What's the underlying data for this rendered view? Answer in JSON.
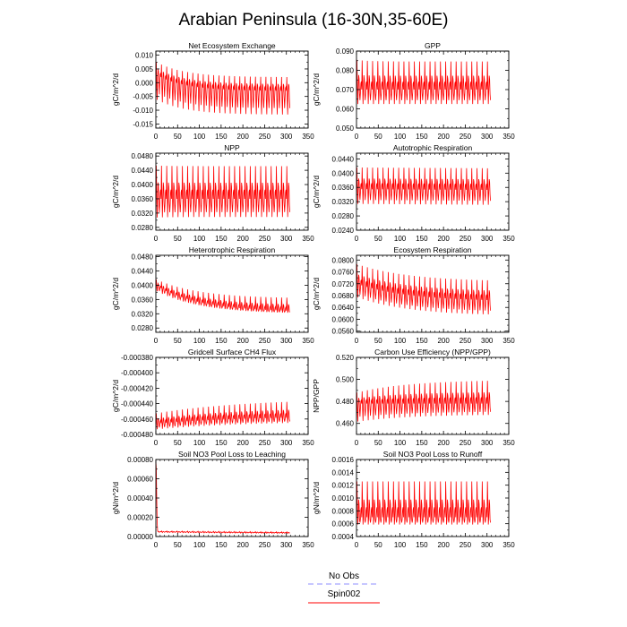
{
  "title": "Arabian Peninsula (16-30N,35-60E)",
  "colors": {
    "series": "#ff0000",
    "obs": "#8c8cff",
    "axis": "#000000"
  },
  "legend": {
    "placement": "bottom-center",
    "obs_label": "No Obs",
    "series_label": "Spin002"
  },
  "chart_data": [
    {
      "type": "line",
      "title": "Net Ecosystem Exchange",
      "ylabel": "gC/m^2/d",
      "xlim": [
        0,
        350
      ],
      "xticks": [
        "0",
        "50",
        "100",
        "150",
        "200",
        "250",
        "300",
        "350"
      ],
      "ylim": [
        -0.0165,
        0.0115
      ],
      "yticks": [
        {
          "v": -0.015,
          "t": "-0.015"
        },
        {
          "v": -0.01,
          "t": "-0.010"
        },
        {
          "v": -0.005,
          "t": "-0.005"
        },
        {
          "v": 0.0,
          "t": "0.000"
        },
        {
          "v": 0.005,
          "t": "0.005"
        },
        {
          "v": 0.01,
          "t": "0.010"
        }
      ],
      "series": [
        {
          "n": 308,
          "period": 12,
          "start_hi": 0.0085,
          "hi": 0.003,
          "start_lo": -0.009,
          "lo": -0.0145,
          "settle": 0.18,
          "mid_start": 0.003,
          "mid": -0.003
        }
      ]
    },
    {
      "type": "line",
      "title": "GPP",
      "ylabel": "gC/m^2/d",
      "xlim": [
        0,
        350
      ],
      "xticks": [
        "0",
        "50",
        "100",
        "150",
        "200",
        "250",
        "300",
        "350"
      ],
      "ylim": [
        0.05,
        0.09
      ],
      "yticks": [
        {
          "v": 0.05,
          "t": "0.050"
        },
        {
          "v": 0.06,
          "t": "0.060"
        },
        {
          "v": 0.07,
          "t": "0.070"
        },
        {
          "v": 0.08,
          "t": "0.080"
        },
        {
          "v": 0.09,
          "t": "0.090"
        }
      ],
      "series": [
        {
          "n": 308,
          "period": 12,
          "start_hi": 0.0885,
          "hi": 0.0875,
          "start_lo": 0.06,
          "lo": 0.06,
          "settle": 0.4,
          "mid_start": 0.07,
          "mid": 0.07
        }
      ]
    },
    {
      "type": "line",
      "title": "NPP",
      "ylabel": "gC/m^2/d",
      "xlim": [
        0,
        350
      ],
      "xticks": [
        "0",
        "50",
        "100",
        "150",
        "200",
        "250",
        "300",
        "350"
      ],
      "ylim": [
        0.0272,
        0.0488
      ],
      "yticks": [
        {
          "v": 0.028,
          "t": "0.0280"
        },
        {
          "v": 0.032,
          "t": "0.0320"
        },
        {
          "v": 0.036,
          "t": "0.0360"
        },
        {
          "v": 0.04,
          "t": "0.0400"
        },
        {
          "v": 0.044,
          "t": "0.0440"
        },
        {
          "v": 0.048,
          "t": "0.0480"
        }
      ],
      "series": [
        {
          "n": 308,
          "period": 12,
          "start_hi": 0.0472,
          "hi": 0.047,
          "start_lo": 0.029,
          "lo": 0.0292,
          "settle": 0.4,
          "mid_start": 0.036,
          "mid": 0.036
        }
      ]
    },
    {
      "type": "line",
      "title": "Autotrophic Respiration",
      "ylabel": "gC/m^2/d",
      "xlim": [
        0,
        350
      ],
      "xticks": [
        "0",
        "50",
        "100",
        "150",
        "200",
        "250",
        "300",
        "350"
      ],
      "ylim": [
        0.024,
        0.0456
      ],
      "yticks": [
        {
          "v": 0.024,
          "t": "0.0240"
        },
        {
          "v": 0.028,
          "t": "0.0280"
        },
        {
          "v": 0.032,
          "t": "0.0320"
        },
        {
          "v": 0.036,
          "t": "0.0360"
        },
        {
          "v": 0.04,
          "t": "0.0400"
        },
        {
          "v": 0.044,
          "t": "0.0440"
        }
      ],
      "series": [
        {
          "n": 308,
          "period": 12,
          "start_hi": 0.0428,
          "hi": 0.0405,
          "start_lo": 0.03,
          "lo": 0.0272,
          "settle": 0.004,
          "mid_start": 0.0355,
          "mid": 0.0335
        }
      ]
    },
    {
      "type": "line",
      "title": "Heterotrophic Respiration",
      "ylabel": "gC/m^2/d",
      "xlim": [
        0,
        350
      ],
      "xticks": [
        "0",
        "50",
        "100",
        "150",
        "200",
        "250",
        "300",
        "350"
      ],
      "ylim": [
        0.0268,
        0.0484
      ],
      "yticks": [
        {
          "v": 0.028,
          "t": "0.0280"
        },
        {
          "v": 0.032,
          "t": "0.0320"
        },
        {
          "v": 0.036,
          "t": "0.0360"
        },
        {
          "v": 0.04,
          "t": "0.0400"
        },
        {
          "v": 0.044,
          "t": "0.0440"
        },
        {
          "v": 0.048,
          "t": "0.0480"
        }
      ],
      "series": [
        {
          "n": 308,
          "period": 12,
          "start_hi": 0.042,
          "hi": 0.037,
          "start_lo": 0.038,
          "lo": 0.0318,
          "settle": 0.12,
          "mid_start": 0.04,
          "mid": 0.0325
        }
      ]
    },
    {
      "type": "line",
      "title": "Ecosystem Respiration",
      "ylabel": "gC/m^2/d",
      "xlim": [
        0,
        350
      ],
      "xticks": [
        "0",
        "50",
        "100",
        "150",
        "200",
        "250",
        "300",
        "350"
      ],
      "ylim": [
        0.0556,
        0.0816
      ],
      "yticks": [
        {
          "v": 0.056,
          "t": "0.0560"
        },
        {
          "v": 0.06,
          "t": "0.0600"
        },
        {
          "v": 0.064,
          "t": "0.0640"
        },
        {
          "v": 0.068,
          "t": "0.0680"
        },
        {
          "v": 0.072,
          "t": "0.0720"
        },
        {
          "v": 0.076,
          "t": "0.0760"
        },
        {
          "v": 0.08,
          "t": "0.0800"
        }
      ],
      "series": [
        {
          "n": 308,
          "period": 12,
          "start_hi": 0.08,
          "hi": 0.074,
          "start_lo": 0.066,
          "lo": 0.0595,
          "settle": 0.1,
          "mid_start": 0.072,
          "mid": 0.066
        }
      ]
    },
    {
      "type": "line",
      "title": "Gridcell Surface CH4 Flux",
      "ylabel": "gC/m^2/d",
      "xlim": [
        0,
        350
      ],
      "xticks": [
        "0",
        "50",
        "100",
        "150",
        "200",
        "250",
        "300",
        "350"
      ],
      "ylim": [
        -0.00048,
        -0.00038
      ],
      "yticks": [
        {
          "v": -0.00048,
          "t": "-0.000480"
        },
        {
          "v": -0.00046,
          "t": "-0.000460"
        },
        {
          "v": -0.00044,
          "t": "-0.000440"
        },
        {
          "v": -0.00042,
          "t": "-0.000420"
        },
        {
          "v": -0.0004,
          "t": "-0.000400"
        },
        {
          "v": -0.00038,
          "t": "-0.000380"
        }
      ],
      "series": [
        {
          "n": 308,
          "period": 12,
          "start_hi": -0.00045,
          "hi": -0.000429,
          "start_lo": -0.000476,
          "lo": -0.000465,
          "settle": 0.06,
          "mid_start": -0.000466,
          "mid": -0.000456
        }
      ]
    },
    {
      "type": "line",
      "title": "Carbon Use Efficiency (NPP/GPP)",
      "ylabel": "NPP/GPP",
      "xlim": [
        0,
        350
      ],
      "xticks": [
        "0",
        "50",
        "100",
        "150",
        "200",
        "250",
        "300",
        "350"
      ],
      "ylim": [
        0.45,
        0.52
      ],
      "yticks": [
        {
          "v": 0.46,
          "t": "0.460"
        },
        {
          "v": 0.48,
          "t": "0.480"
        },
        {
          "v": 0.5,
          "t": "0.500"
        },
        {
          "v": 0.52,
          "t": "0.520"
        }
      ],
      "series": [
        {
          "n": 308,
          "period": 12,
          "start_hi": 0.49,
          "hi": 0.504,
          "start_lo": 0.456,
          "lo": 0.465,
          "settle": 0.1,
          "mid_start": 0.478,
          "mid": 0.478
        }
      ]
    },
    {
      "type": "line",
      "title": "Soil NO3 Pool Loss to Leaching",
      "ylabel": "gN/m^2/d",
      "xlim": [
        0,
        350
      ],
      "xticks": [
        "0",
        "50",
        "100",
        "150",
        "200",
        "250",
        "300",
        "350"
      ],
      "ylim": [
        0.0,
        0.0008
      ],
      "yticks": [
        {
          "v": 0.0,
          "t": "0.00000"
        },
        {
          "v": 0.0002,
          "t": "0.00020"
        },
        {
          "v": 0.0004,
          "t": "0.00040"
        },
        {
          "v": 0.0006,
          "t": "0.00060"
        },
        {
          "v": 0.0008,
          "t": "0.00080"
        }
      ],
      "series": [
        {
          "n": 308,
          "period": 12,
          "start_hi": 6e-05,
          "hi": 3.5e-05,
          "start_lo": 4e-05,
          "lo": 1.5e-05,
          "settle": 0.02,
          "mid_start": 5e-05,
          "mid": 2.5e-05,
          "spike": 0.00078
        }
      ]
    },
    {
      "type": "line",
      "title": "Soil NO3 Pool Loss to Runoff",
      "ylabel": "gN/m^2/d",
      "xlim": [
        0,
        350
      ],
      "xticks": [
        "0",
        "50",
        "100",
        "150",
        "200",
        "250",
        "300",
        "350"
      ],
      "ylim": [
        0.0004,
        0.0016
      ],
      "yticks": [
        {
          "v": 0.0004,
          "t": "0.0004"
        },
        {
          "v": 0.0006,
          "t": "0.0006"
        },
        {
          "v": 0.0008,
          "t": "0.0008"
        },
        {
          "v": 0.001,
          "t": "0.0010"
        },
        {
          "v": 0.0012,
          "t": "0.0012"
        },
        {
          "v": 0.0014,
          "t": "0.0014"
        },
        {
          "v": 0.0016,
          "t": "0.0016"
        }
      ],
      "series": [
        {
          "n": 308,
          "period": 12,
          "start_hi": 0.00137,
          "hi": 0.00137,
          "start_lo": 0.00055,
          "lo": 0.00055,
          "settle": 0.4,
          "mid_start": 0.0007,
          "mid": 0.0007
        }
      ]
    }
  ]
}
